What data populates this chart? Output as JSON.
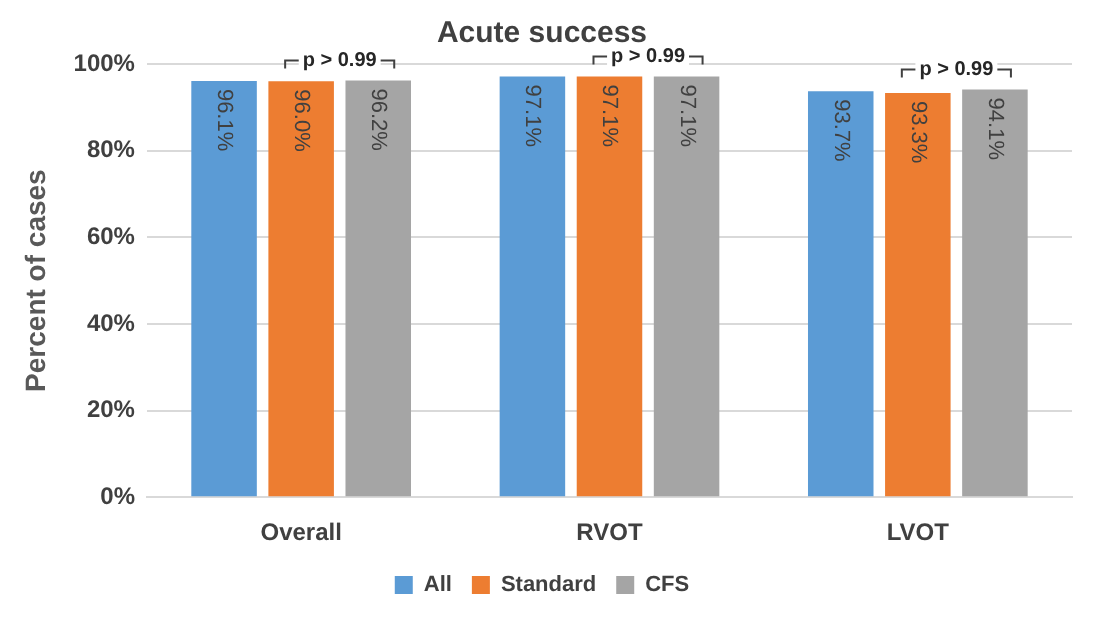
{
  "chart_data": {
    "type": "bar",
    "title": "Acute success",
    "ylabel": "Percent of cases",
    "categories": [
      "Overall",
      "RVOT",
      "LVOT"
    ],
    "series": [
      {
        "name": "All",
        "color": "#5b9bd5",
        "values": [
          96.1,
          97.1,
          93.7
        ],
        "value_labels": [
          "96.1%",
          "97.1%",
          "93.7%"
        ]
      },
      {
        "name": "Standard",
        "color": "#ed7d31",
        "values": [
          96.0,
          97.1,
          93.3
        ],
        "value_labels": [
          "96.0%",
          "97.1%",
          "93.3%"
        ]
      },
      {
        "name": "CFS",
        "color": "#a5a5a5",
        "values": [
          96.2,
          97.1,
          94.1
        ],
        "value_labels": [
          "96.2%",
          "97.1%",
          "94.1%"
        ]
      }
    ],
    "ylim": [
      0,
      100
    ],
    "yticks": [
      {
        "value": 0,
        "label": "0%"
      },
      {
        "value": 20,
        "label": "20%"
      },
      {
        "value": 40,
        "label": "40%"
      },
      {
        "value": 60,
        "label": "60%"
      },
      {
        "value": 80,
        "label": "80%"
      },
      {
        "value": 100,
        "label": "100%"
      }
    ],
    "grid": "y",
    "legend": "bottom",
    "annotations": [
      "p > 0.99",
      "p > 0.99",
      "p > 0.99"
    ]
  }
}
